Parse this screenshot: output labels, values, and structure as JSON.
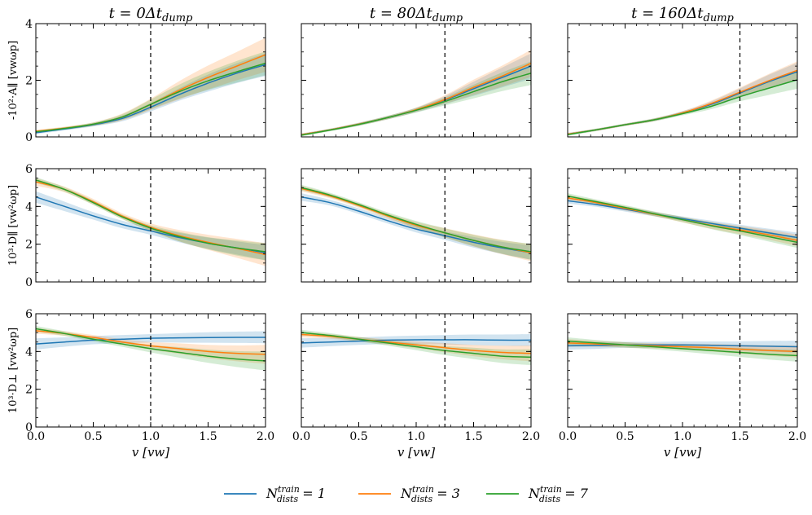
{
  "colors": {
    "n1": "#1f77b4",
    "n3": "#ff7f0e",
    "n7": "#2ca02c",
    "axis": "#000000",
    "background": "#ffffff"
  },
  "legend": {
    "placement": "bottom-center",
    "entries": [
      {
        "key": "n1",
        "label_main": "N",
        "label_sup": "train",
        "label_sub": "dists",
        "label_rest": " = 1"
      },
      {
        "key": "n3",
        "label_main": "N",
        "label_sup": "train",
        "label_sub": "dists",
        "label_rest": " = 3"
      },
      {
        "key": "n7",
        "label_main": "N",
        "label_sup": "train",
        "label_sub": "dists",
        "label_rest": " = 7"
      }
    ]
  },
  "columns": [
    {
      "title": "t = 0Δt",
      "title_sub": "dump",
      "vline": 1.0
    },
    {
      "title": "t = 80Δt",
      "title_sub": "dump",
      "vline": 1.25
    },
    {
      "title": "t = 160Δt",
      "title_sub": "dump",
      "vline": 1.5
    }
  ],
  "rows": [
    {
      "ylabel": "-10²·A∥ [vwωp]",
      "ylim": [
        0,
        4
      ],
      "yticks": [
        "0",
        "2",
        "4"
      ]
    },
    {
      "ylabel": "10³·D∥ [vw²ωp]",
      "ylim": [
        0,
        6
      ],
      "yticks": [
        "0",
        "2",
        "4",
        "6"
      ]
    },
    {
      "ylabel": "10³·D⊥ [vw²ωp]",
      "ylim": [
        0,
        6
      ],
      "yticks": [
        "0",
        "2",
        "4",
        "6"
      ]
    }
  ],
  "xaxis": {
    "label": "v [vw]",
    "xlim": [
      0,
      2
    ],
    "xticks": [
      "0.0",
      "0.5",
      "1.0",
      "1.5",
      "2.0"
    ]
  },
  "chart_data": [
    {
      "type": "line",
      "row": 0,
      "col": 0,
      "x": [
        0,
        0.25,
        0.5,
        0.75,
        1.0,
        1.25,
        1.5,
        1.75,
        2.0
      ],
      "series": [
        {
          "name": "N_dists^train = 1",
          "values": [
            0.15,
            0.28,
            0.43,
            0.65,
            1.05,
            1.5,
            1.9,
            2.25,
            2.55
          ],
          "band": [
            0.05,
            0.05,
            0.06,
            0.1,
            0.15,
            0.22,
            0.3,
            0.35,
            0.4
          ]
        },
        {
          "name": "N_dists^train = 3",
          "values": [
            0.2,
            0.31,
            0.45,
            0.7,
            1.15,
            1.65,
            2.1,
            2.5,
            2.9
          ],
          "band": [
            0.05,
            0.05,
            0.06,
            0.12,
            0.2,
            0.32,
            0.42,
            0.5,
            0.6
          ]
        },
        {
          "name": "N_dists^train = 7",
          "values": [
            0.18,
            0.3,
            0.45,
            0.7,
            1.15,
            1.6,
            1.98,
            2.3,
            2.6
          ],
          "band": [
            0.05,
            0.05,
            0.06,
            0.1,
            0.17,
            0.25,
            0.32,
            0.38,
            0.42
          ]
        }
      ]
    },
    {
      "type": "line",
      "row": 0,
      "col": 1,
      "x": [
        0,
        0.25,
        0.5,
        0.75,
        1.0,
        1.25,
        1.5,
        1.75,
        2.0
      ],
      "series": [
        {
          "name": "N_dists^train = 1",
          "values": [
            0.08,
            0.25,
            0.45,
            0.68,
            0.95,
            1.3,
            1.7,
            2.1,
            2.5
          ],
          "band": [
            0.04,
            0.04,
            0.05,
            0.06,
            0.08,
            0.14,
            0.25,
            0.35,
            0.45
          ]
        },
        {
          "name": "N_dists^train = 3",
          "values": [
            0.08,
            0.25,
            0.45,
            0.68,
            0.96,
            1.32,
            1.75,
            2.15,
            2.6
          ],
          "band": [
            0.04,
            0.04,
            0.05,
            0.06,
            0.08,
            0.15,
            0.27,
            0.37,
            0.48
          ]
        },
        {
          "name": "N_dists^train = 7",
          "values": [
            0.06,
            0.24,
            0.44,
            0.68,
            0.94,
            1.25,
            1.6,
            1.95,
            2.25
          ],
          "band": [
            0.04,
            0.04,
            0.05,
            0.06,
            0.08,
            0.14,
            0.24,
            0.33,
            0.42
          ]
        }
      ]
    },
    {
      "type": "line",
      "row": 0,
      "col": 2,
      "x": [
        0,
        0.25,
        0.5,
        0.75,
        1.0,
        1.25,
        1.5,
        1.75,
        2.0
      ],
      "series": [
        {
          "name": "N_dists^train = 1",
          "values": [
            0.1,
            0.25,
            0.43,
            0.6,
            0.85,
            1.15,
            1.55,
            1.95,
            2.3
          ],
          "band": [
            0.04,
            0.04,
            0.04,
            0.05,
            0.06,
            0.1,
            0.16,
            0.24,
            0.32
          ]
        },
        {
          "name": "N_dists^train = 3",
          "values": [
            0.1,
            0.25,
            0.43,
            0.6,
            0.85,
            1.18,
            1.58,
            1.98,
            2.35
          ],
          "band": [
            0.04,
            0.04,
            0.04,
            0.05,
            0.06,
            0.1,
            0.16,
            0.24,
            0.32
          ]
        },
        {
          "name": "N_dists^train = 7",
          "values": [
            0.08,
            0.25,
            0.43,
            0.6,
            0.82,
            1.08,
            1.42,
            1.72,
            2.02
          ],
          "band": [
            0.04,
            0.04,
            0.04,
            0.05,
            0.06,
            0.1,
            0.16,
            0.24,
            0.32
          ]
        }
      ]
    },
    {
      "type": "line",
      "row": 1,
      "col": 0,
      "x": [
        0,
        0.25,
        0.5,
        0.75,
        1.0,
        1.25,
        1.5,
        1.75,
        2.0
      ],
      "series": [
        {
          "name": "N_dists^train = 1",
          "values": [
            4.5,
            4.0,
            3.5,
            3.05,
            2.7,
            2.35,
            2.05,
            1.8,
            1.55
          ],
          "band": [
            0.3,
            0.25,
            0.2,
            0.2,
            0.2,
            0.25,
            0.3,
            0.35,
            0.4
          ]
        },
        {
          "name": "N_dists^train = 3",
          "values": [
            5.3,
            4.9,
            4.25,
            3.5,
            2.9,
            2.45,
            2.1,
            1.78,
            1.45
          ],
          "band": [
            0.2,
            0.15,
            0.15,
            0.15,
            0.2,
            0.3,
            0.4,
            0.5,
            0.6
          ]
        },
        {
          "name": "N_dists^train = 7",
          "values": [
            5.4,
            4.9,
            4.2,
            3.45,
            2.85,
            2.4,
            2.05,
            1.8,
            1.6
          ],
          "band": [
            0.15,
            0.12,
            0.12,
            0.12,
            0.15,
            0.25,
            0.32,
            0.4,
            0.45
          ]
        }
      ]
    },
    {
      "type": "line",
      "row": 1,
      "col": 1,
      "x": [
        0,
        0.25,
        0.5,
        0.75,
        1.0,
        1.25,
        1.5,
        1.75,
        2.0
      ],
      "series": [
        {
          "name": "N_dists^train = 1",
          "values": [
            4.5,
            4.2,
            3.75,
            3.25,
            2.8,
            2.45,
            2.1,
            1.8,
            1.55
          ],
          "band": [
            0.2,
            0.15,
            0.15,
            0.15,
            0.18,
            0.22,
            0.28,
            0.32,
            0.38
          ]
        },
        {
          "name": "N_dists^train = 3",
          "values": [
            4.95,
            4.55,
            4.05,
            3.5,
            3.0,
            2.6,
            2.2,
            1.85,
            1.55
          ],
          "band": [
            0.15,
            0.12,
            0.12,
            0.14,
            0.18,
            0.25,
            0.32,
            0.38,
            0.45
          ]
        },
        {
          "name": "N_dists^train = 7",
          "values": [
            5.0,
            4.6,
            4.1,
            3.55,
            3.05,
            2.6,
            2.2,
            1.85,
            1.6
          ],
          "band": [
            0.15,
            0.12,
            0.12,
            0.14,
            0.18,
            0.24,
            0.3,
            0.36,
            0.42
          ]
        }
      ]
    },
    {
      "type": "line",
      "row": 1,
      "col": 2,
      "x": [
        0,
        0.25,
        0.5,
        0.75,
        1.0,
        1.25,
        1.5,
        1.75,
        2.0
      ],
      "series": [
        {
          "name": "N_dists^train = 1",
          "values": [
            4.3,
            4.1,
            3.85,
            3.6,
            3.35,
            3.1,
            2.85,
            2.6,
            2.35
          ],
          "band": [
            0.15,
            0.12,
            0.12,
            0.12,
            0.12,
            0.15,
            0.18,
            0.22,
            0.26
          ]
        },
        {
          "name": "N_dists^train = 3",
          "values": [
            4.45,
            4.2,
            3.9,
            3.6,
            3.3,
            3.0,
            2.75,
            2.5,
            2.2
          ],
          "band": [
            0.15,
            0.12,
            0.12,
            0.12,
            0.14,
            0.18,
            0.22,
            0.26,
            0.3
          ]
        },
        {
          "name": "N_dists^train = 7",
          "values": [
            4.55,
            4.25,
            3.95,
            3.62,
            3.3,
            2.98,
            2.7,
            2.4,
            2.1
          ],
          "band": [
            0.15,
            0.12,
            0.12,
            0.12,
            0.14,
            0.18,
            0.22,
            0.26,
            0.3
          ]
        }
      ]
    },
    {
      "type": "line",
      "row": 2,
      "col": 0,
      "x": [
        0,
        0.25,
        0.5,
        0.75,
        1.0,
        1.25,
        1.5,
        1.75,
        2.0
      ],
      "series": [
        {
          "name": "N_dists^train = 1",
          "values": [
            4.4,
            4.5,
            4.6,
            4.65,
            4.7,
            4.72,
            4.74,
            4.75,
            4.75
          ],
          "band": [
            0.3,
            0.25,
            0.22,
            0.22,
            0.22,
            0.25,
            0.28,
            0.3,
            0.32
          ]
        },
        {
          "name": "N_dists^train = 3",
          "values": [
            5.1,
            4.95,
            4.75,
            4.5,
            4.3,
            4.15,
            4.0,
            3.9,
            3.85
          ],
          "band": [
            0.15,
            0.12,
            0.12,
            0.15,
            0.2,
            0.28,
            0.35,
            0.42,
            0.5
          ]
        },
        {
          "name": "N_dists^train = 7",
          "values": [
            5.2,
            4.95,
            4.65,
            4.4,
            4.15,
            3.95,
            3.75,
            3.6,
            3.5
          ],
          "band": [
            0.15,
            0.12,
            0.12,
            0.15,
            0.2,
            0.28,
            0.35,
            0.42,
            0.5
          ]
        }
      ]
    },
    {
      "type": "line",
      "row": 2,
      "col": 1,
      "x": [
        0,
        0.25,
        0.5,
        0.75,
        1.0,
        1.25,
        1.5,
        1.75,
        2.0
      ],
      "series": [
        {
          "name": "N_dists^train = 1",
          "values": [
            4.45,
            4.5,
            4.55,
            4.6,
            4.62,
            4.62,
            4.62,
            4.6,
            4.6
          ],
          "band": [
            0.25,
            0.22,
            0.2,
            0.2,
            0.22,
            0.25,
            0.28,
            0.3,
            0.32
          ]
        },
        {
          "name": "N_dists^train = 3",
          "values": [
            4.9,
            4.8,
            4.65,
            4.5,
            4.35,
            4.2,
            4.05,
            3.95,
            3.9
          ],
          "band": [
            0.15,
            0.12,
            0.12,
            0.14,
            0.18,
            0.24,
            0.3,
            0.36,
            0.42
          ]
        },
        {
          "name": "N_dists^train = 7",
          "values": [
            5.0,
            4.85,
            4.65,
            4.45,
            4.25,
            4.05,
            3.9,
            3.75,
            3.7
          ],
          "band": [
            0.15,
            0.12,
            0.12,
            0.14,
            0.18,
            0.24,
            0.3,
            0.36,
            0.42
          ]
        }
      ]
    },
    {
      "type": "line",
      "row": 2,
      "col": 2,
      "x": [
        0,
        0.25,
        0.5,
        0.75,
        1.0,
        1.25,
        1.5,
        1.75,
        2.0
      ],
      "series": [
        {
          "name": "N_dists^train = 1",
          "values": [
            4.3,
            4.32,
            4.35,
            4.35,
            4.35,
            4.33,
            4.3,
            4.28,
            4.25
          ],
          "band": [
            0.2,
            0.18,
            0.16,
            0.16,
            0.18,
            0.2,
            0.24,
            0.28,
            0.32
          ]
        },
        {
          "name": "N_dists^train = 3",
          "values": [
            4.45,
            4.4,
            4.35,
            4.3,
            4.25,
            4.2,
            4.12,
            4.05,
            4.0
          ],
          "band": [
            0.2,
            0.16,
            0.14,
            0.14,
            0.16,
            0.2,
            0.24,
            0.28,
            0.32
          ]
        },
        {
          "name": "N_dists^train = 7",
          "values": [
            4.55,
            4.45,
            4.35,
            4.25,
            4.15,
            4.05,
            3.95,
            3.85,
            3.78
          ],
          "band": [
            0.2,
            0.16,
            0.14,
            0.14,
            0.16,
            0.2,
            0.24,
            0.28,
            0.32
          ]
        }
      ]
    }
  ]
}
